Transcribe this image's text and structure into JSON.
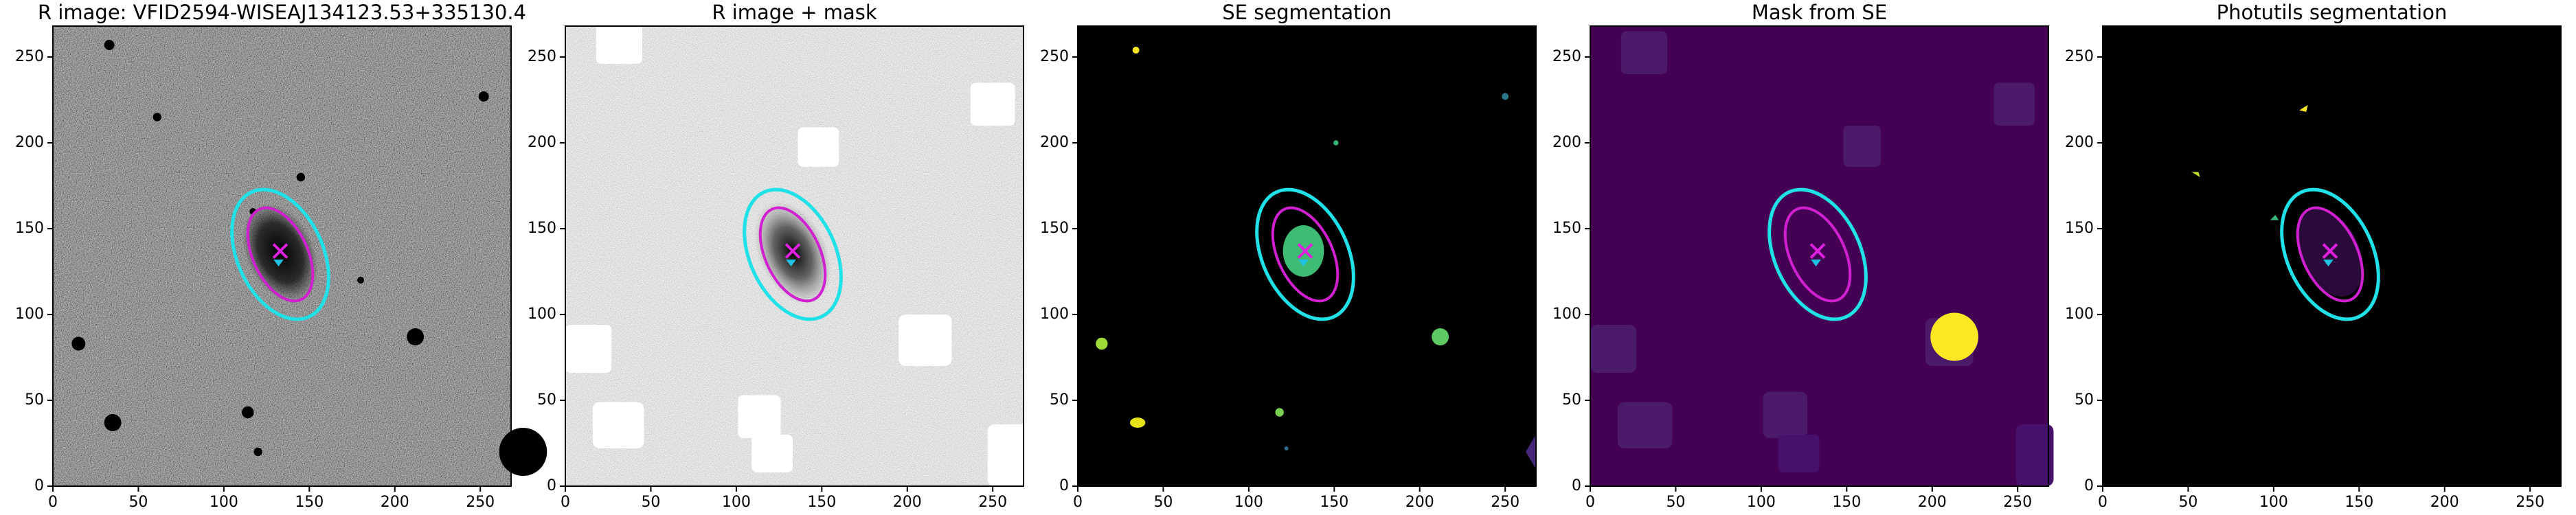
{
  "chart_data": [
    {
      "type": "image",
      "title": "R image: VFID2594-WISEAJ134123.53+335130.4",
      "xlim": [
        0,
        268
      ],
      "ylim": [
        0,
        268
      ],
      "xticks": [
        0,
        50,
        100,
        150,
        200,
        250
      ],
      "yticks": [
        0,
        50,
        100,
        150,
        200,
        250
      ]
    },
    {
      "type": "image",
      "title": "R image + mask",
      "xlim": [
        0,
        268
      ],
      "ylim": [
        0,
        268
      ],
      "xticks": [
        0,
        50,
        100,
        150,
        200,
        250
      ],
      "yticks": [
        0,
        50,
        100,
        150,
        200,
        250
      ]
    },
    {
      "type": "image",
      "title": "SE segmentation",
      "xlim": [
        0,
        268
      ],
      "ylim": [
        0,
        268
      ],
      "xticks": [
        0,
        50,
        100,
        150,
        200,
        250
      ],
      "yticks": [
        0,
        50,
        100,
        150,
        200,
        250
      ]
    },
    {
      "type": "image",
      "title": "Mask from SE",
      "xlim": [
        0,
        268
      ],
      "ylim": [
        0,
        268
      ],
      "xticks": [
        0,
        50,
        100,
        150,
        200,
        250
      ],
      "yticks": [
        0,
        50,
        100,
        150,
        200,
        250
      ]
    },
    {
      "type": "image",
      "title": "Photutils segmentation",
      "xlim": [
        0,
        268
      ],
      "ylim": [
        0,
        268
      ],
      "xticks": [
        0,
        50,
        100,
        150,
        200,
        250
      ],
      "yticks": [
        0,
        50,
        100,
        150,
        200,
        250
      ]
    }
  ]
}
